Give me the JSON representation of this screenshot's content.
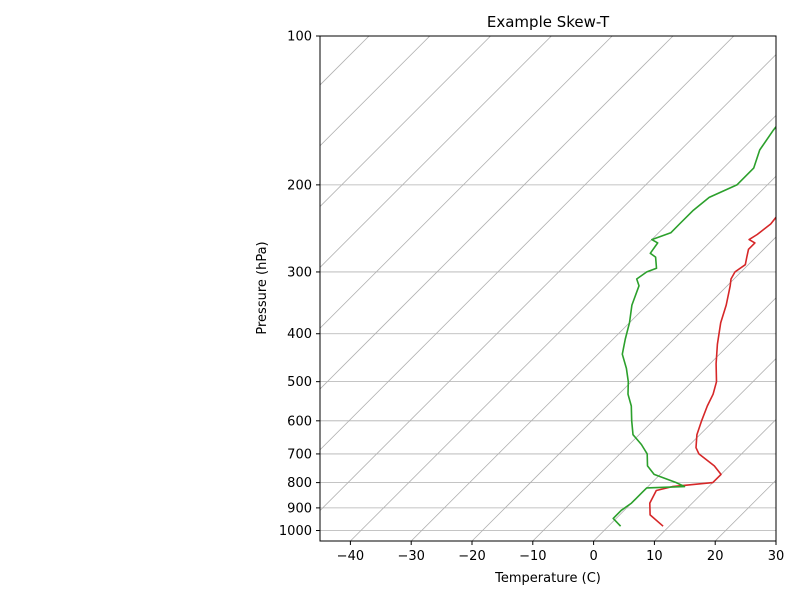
{
  "chart_data": {
    "type": "line",
    "title": "Example Skew-T",
    "xlabel": "Temperature (C)",
    "ylabel": "Pressure (hPa)",
    "xlim": [
      -45,
      30
    ],
    "ylim": [
      1050,
      100
    ],
    "y_scale": "log",
    "skew": true,
    "x_ticks": [
      -40,
      -30,
      -20,
      -10,
      0,
      10,
      20,
      30
    ],
    "x_tick_labels": [
      "−40",
      "−30",
      "−20",
      "−10",
      "0",
      "10",
      "20",
      "30"
    ],
    "y_ticks": [
      100,
      200,
      300,
      400,
      500,
      600,
      700,
      800,
      900,
      1000
    ],
    "y_tick_labels": [
      "100",
      "200",
      "300",
      "400",
      "500",
      "600",
      "700",
      "800",
      "900",
      "1000"
    ],
    "grid": true,
    "isotherms": [
      -160,
      -150,
      -140,
      -130,
      -120,
      -110,
      -100,
      -90,
      -80,
      -70,
      -60,
      -50,
      -40,
      -30,
      -20,
      -10,
      0,
      10,
      20,
      30
    ],
    "series": [
      {
        "color": "#d62728",
        "p": [
          980,
          930,
          880,
          830,
          815,
          800,
          770,
          740,
          700,
          680,
          640,
          600,
          560,
          530,
          500,
          460,
          420,
          380,
          350,
          320,
          310,
          300,
          290,
          280,
          270,
          262,
          258,
          252,
          240,
          225,
          212,
          200,
          185,
          170,
          155,
          145,
          137,
          132,
          127,
          122,
          113,
          108,
          103,
          100
        ],
        "T": [
          9.0,
          5.0,
          3.0,
          2.0,
          4.0,
          10.0,
          10.0,
          7.5,
          3.0,
          1.5,
          -0.5,
          -2.0,
          -3.5,
          -4.5,
          -6.0,
          -9.0,
          -12.0,
          -15.0,
          -17.0,
          -19.5,
          -20.5,
          -21.0,
          -20.5,
          -21.5,
          -22.5,
          -22.5,
          -24.0,
          -23.5,
          -23.0,
          -23.5,
          -24.0,
          -24.0,
          -24.0,
          -26.0,
          -26.5,
          -27.5,
          -28.5,
          -28.0,
          -27.0,
          -28.0,
          -32.0,
          -31.0,
          -31.0,
          -31.0
        ]
      },
      {
        "color": "#2ca02c",
        "p": [
          980,
          945,
          910,
          880,
          870,
          838,
          820,
          815,
          800,
          770,
          740,
          700,
          670,
          640,
          600,
          560,
          530,
          500,
          470,
          440,
          410,
          380,
          350,
          320,
          310,
          300,
          295,
          280,
          275,
          262,
          258,
          250,
          240,
          225,
          212,
          200,
          185,
          170,
          155,
          145,
          137,
          130,
          125,
          120,
          113,
          110,
          104,
          100
        ],
        "T": [
          2.0,
          -0.5,
          -0.5,
          0.0,
          0.0,
          0.0,
          0.0,
          6.0,
          4.0,
          -1.0,
          -3.5,
          -5.5,
          -8.0,
          -11.0,
          -13.5,
          -16.0,
          -18.5,
          -20.5,
          -23.0,
          -26.0,
          -28.0,
          -30.0,
          -32.5,
          -34.5,
          -36.0,
          -35.5,
          -34.5,
          -36.5,
          -38.0,
          -38.5,
          -40.0,
          -38.0,
          -38.0,
          -38.0,
          -37.5,
          -35.0,
          -35.0,
          -37.0,
          -38.0,
          -38.5,
          -39.0,
          -39.5,
          -38.5,
          -37.0,
          -39.5,
          -38.0,
          -37.5,
          -36.0
        ]
      }
    ]
  }
}
